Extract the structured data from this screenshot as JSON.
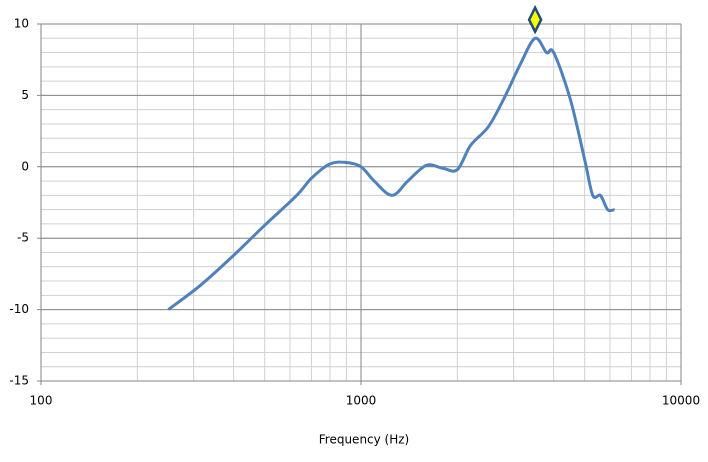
{
  "chart_data": {
    "type": "line",
    "x_label": "Frequency  (Hz)",
    "x": [
      250,
      315,
      400,
      500,
      630,
      700,
      800,
      900,
      1000,
      1100,
      1250,
      1400,
      1600,
      1800,
      2000,
      2200,
      2500,
      2800,
      3150,
      3500,
      3800,
      4000,
      4500,
      5000,
      5300,
      5600,
      5900,
      6200
    ],
    "series": [
      {
        "color": "#4f81bd",
        "values": [
          -10,
          -8.3,
          -6.2,
          -4.1,
          -2,
          -0.8,
          0.2,
          0.3,
          0,
          -1,
          -2,
          -1,
          0.1,
          -0.1,
          -0.2,
          1.5,
          2.8,
          4.8,
          7.2,
          9,
          8,
          8,
          4.8,
          0.5,
          -2,
          -2,
          -3,
          -3
        ]
      }
    ],
    "marker": {
      "x": 3500,
      "y": 10.3,
      "color": "#ffff00",
      "edge": "#1f4e79"
    },
    "xscale": "log",
    "xlim": [
      100,
      10000
    ],
    "xticks": [
      100,
      1000,
      10000
    ],
    "ylim": [
      -15,
      10
    ],
    "yticks": [
      -15,
      -10,
      -5,
      0,
      5,
      10
    ],
    "grid": true,
    "minor_grid": true
  }
}
